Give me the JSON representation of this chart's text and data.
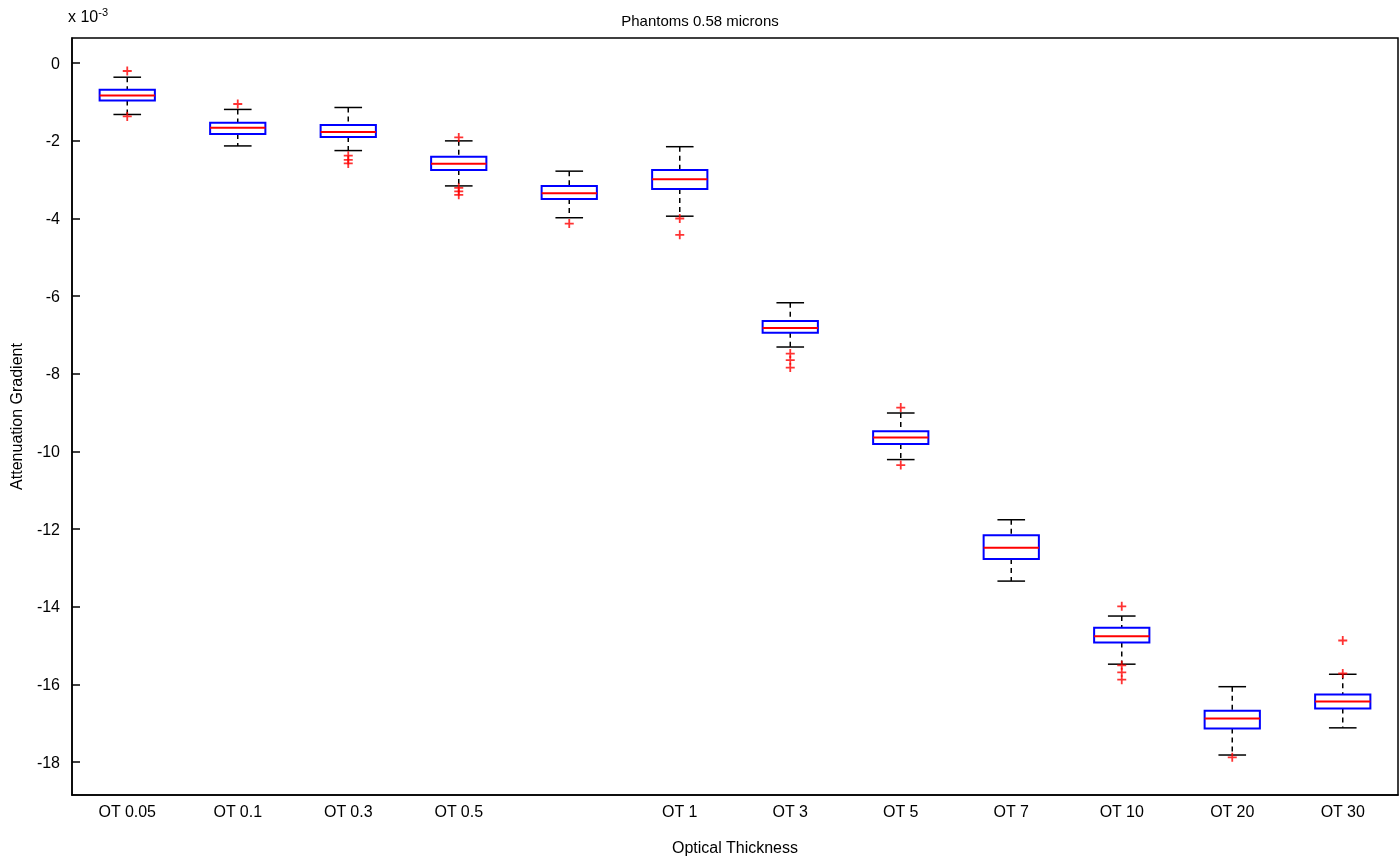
{
  "chart_data": {
    "type": "box",
    "title": "Phantoms 0.58 microns",
    "xlabel": "Optical Thickness",
    "ylabel": "Attenuation Gradient",
    "annotations": [
      "x 10$^{-3}$"
    ],
    "categories": [
      "OT 0.05",
      "OT 0.1",
      "OT 0.3",
      "OT 0.5",
      null,
      "OT 1",
      "OT 3",
      "OT 5",
      "OT 7",
      "OT 10",
      "OT 20",
      "OT 30"
    ],
    "color": "#0000ff",
    "boxes": [
      {
        "low": -1.32,
        "q1": -0.96,
        "median": -0.83,
        "q3": -0.68,
        "high": -0.36,
        "outliers": [
          -0.2,
          -1.37
        ]
      },
      {
        "low": -2.13,
        "q1": -1.82,
        "median": -1.66,
        "q3": -1.53,
        "high": -1.19,
        "outliers": [
          -1.05
        ]
      },
      {
        "low": -2.25,
        "q1": -1.9,
        "median": -1.77,
        "q3": -1.59,
        "high": -1.14,
        "outliers": [
          -2.38,
          -2.49,
          -2.58
        ]
      },
      {
        "low": -3.16,
        "q1": -2.75,
        "median": -2.59,
        "q3": -2.41,
        "high": -2.0,
        "outliers": [
          -1.91,
          -3.21,
          -3.3,
          -3.39
        ]
      },
      {
        "low": -3.98,
        "q1": -3.5,
        "median": -3.35,
        "q3": -3.16,
        "high": -2.78,
        "outliers": [
          -4.13
        ]
      },
      {
        "low": -3.94,
        "q1": -3.24,
        "median": -2.99,
        "q3": -2.75,
        "high": -2.15,
        "outliers": [
          -4.0,
          -4.42
        ]
      },
      {
        "low": -7.31,
        "q1": -6.94,
        "median": -6.82,
        "q3": -6.64,
        "high": -6.17,
        "outliers": [
          -7.48,
          -7.65,
          -7.84
        ]
      },
      {
        "low": -10.21,
        "q1": -9.81,
        "median": -9.64,
        "q3": -9.48,
        "high": -9.01,
        "outliers": [
          -8.87,
          -10.35
        ]
      },
      {
        "low": -13.34,
        "q1": -12.77,
        "median": -12.48,
        "q3": -12.16,
        "high": -11.76
      },
      {
        "low": -15.48,
        "q1": -14.92,
        "median": -14.76,
        "q3": -14.54,
        "high": -14.24,
        "outliers": [
          -13.99,
          -15.51,
          -15.69,
          -15.88
        ]
      },
      {
        "low": -17.82,
        "q1": -17.14,
        "median": -16.88,
        "q3": -16.68,
        "high": -16.06,
        "outliers": [
          -17.88
        ]
      },
      {
        "low": -17.12,
        "q1": -16.62,
        "median": -16.44,
        "q3": -16.26,
        "high": -15.74,
        "outliers": [
          -14.87,
          -15.72
        ]
      }
    ],
    "ylim": [
      -18.85,
      0.65
    ],
    "yticks": [
      -18,
      -16,
      -14,
      -12,
      -10,
      -8,
      -6,
      -4,
      -2,
      0
    ],
    "grid": false
  }
}
